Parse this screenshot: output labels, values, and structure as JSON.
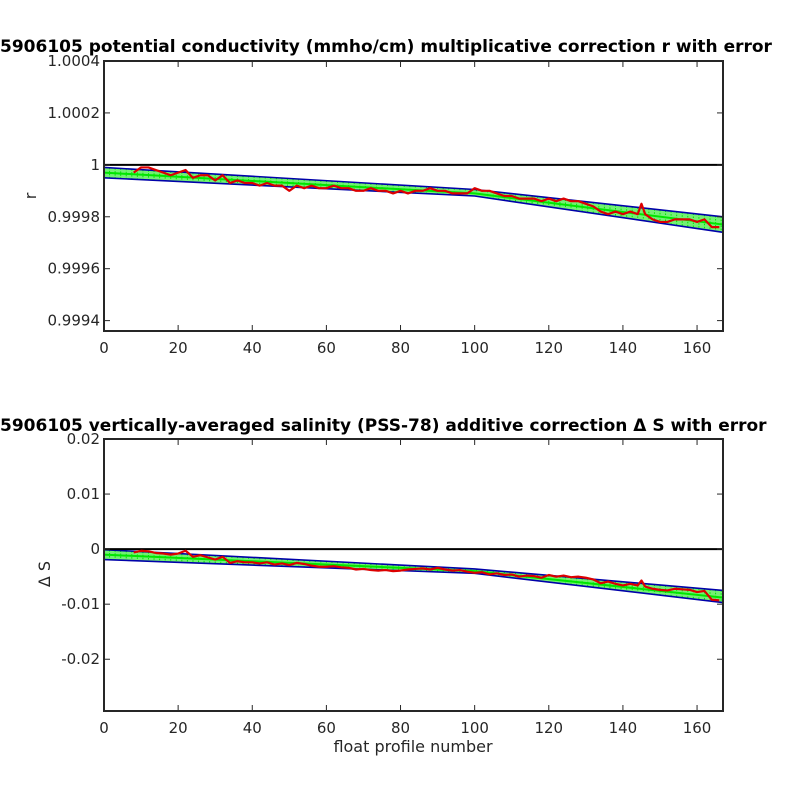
{
  "chart_data": [
    {
      "type": "line",
      "title": "5906105 potential conductivity (mmho/cm) multiplicative correction r with error",
      "xlabel": "",
      "ylabel": "r",
      "xlim": [
        0,
        167
      ],
      "ylim": [
        0.99936,
        1.0004
      ],
      "x_ticks": [
        "0",
        "20",
        "40",
        "60",
        "80",
        "100",
        "120",
        "140",
        "160"
      ],
      "y_ticks": [
        "0.9994",
        "0.9996",
        "0.9998",
        "1",
        "1.0002",
        "1.0004"
      ],
      "reference_line": 1,
      "grid": false,
      "colors": {
        "reference": "#000000",
        "fit": "#00e600",
        "error_bounds": "#0000aa",
        "data": "#dd0000"
      },
      "series": [
        {
          "role": "upper-error-bound",
          "x": [
            0,
            100,
            167
          ],
          "y": [
            0.99999,
            0.999905,
            0.9998
          ]
        },
        {
          "role": "lower-error-bound",
          "x": [
            0,
            100,
            167
          ],
          "y": [
            0.99995,
            0.99988,
            0.99974
          ]
        },
        {
          "role": "fit",
          "x": [
            0,
            100,
            167
          ],
          "y": [
            0.99997,
            0.99989,
            0.99977
          ]
        },
        {
          "role": "data",
          "x": [
            8,
            10,
            12,
            14,
            16,
            18,
            20,
            22,
            24,
            26,
            28,
            30,
            32,
            34,
            36,
            38,
            40,
            42,
            44,
            46,
            48,
            50,
            52,
            54,
            56,
            58,
            60,
            62,
            64,
            66,
            68,
            70,
            72,
            74,
            76,
            78,
            80,
            82,
            84,
            86,
            88,
            90,
            92,
            94,
            96,
            98,
            100,
            102,
            104,
            106,
            108,
            110,
            112,
            114,
            116,
            118,
            120,
            122,
            124,
            126,
            128,
            130,
            132,
            134,
            136,
            138,
            140,
            142,
            144,
            145,
            146,
            148,
            150,
            152,
            154,
            156,
            158,
            160,
            162,
            164,
            166
          ],
          "y": [
            0.99997,
            0.99999,
            0.99999,
            0.99998,
            0.99997,
            0.99996,
            0.99997,
            0.99998,
            0.99995,
            0.99996,
            0.99996,
            0.99994,
            0.99996,
            0.99993,
            0.99994,
            0.99993,
            0.99993,
            0.99992,
            0.99993,
            0.99992,
            0.99992,
            0.9999,
            0.99992,
            0.99991,
            0.99992,
            0.99991,
            0.99991,
            0.99992,
            0.99991,
            0.99991,
            0.9999,
            0.9999,
            0.99991,
            0.9999,
            0.9999,
            0.99989,
            0.9999,
            0.99989,
            0.9999,
            0.9999,
            0.99991,
            0.9999,
            0.9999,
            0.99989,
            0.99989,
            0.99989,
            0.99991,
            0.9999,
            0.9999,
            0.99989,
            0.99988,
            0.99988,
            0.99987,
            0.99987,
            0.99987,
            0.99986,
            0.99987,
            0.99986,
            0.99987,
            0.99986,
            0.99986,
            0.99985,
            0.99984,
            0.99982,
            0.99981,
            0.99982,
            0.99981,
            0.99982,
            0.99981,
            0.99985,
            0.99981,
            0.99979,
            0.99978,
            0.99978,
            0.99979,
            0.99979,
            0.99979,
            0.99978,
            0.99979,
            0.99976,
            0.99976
          ]
        }
      ]
    },
    {
      "type": "line",
      "title": "5906105 vertically-averaged salinity (PSS-78) additive correction Δ S with error",
      "xlabel": "float profile number",
      "ylabel": "Δ S",
      "xlim": [
        0,
        167
      ],
      "ylim": [
        -0.0294,
        0.02
      ],
      "x_ticks": [
        "0",
        "20",
        "40",
        "60",
        "80",
        "100",
        "120",
        "140",
        "160"
      ],
      "y_ticks": [
        "-0.02",
        "-0.01",
        "0",
        "0.01",
        "0.02"
      ],
      "reference_line": 0,
      "grid": false,
      "colors": {
        "reference": "#000000",
        "fit": "#00e600",
        "error_bounds": "#0000aa",
        "data": "#dd0000"
      },
      "series": [
        {
          "role": "upper-error-bound",
          "x": [
            0,
            100,
            167
          ],
          "y": [
            -0.0001,
            -0.0036,
            -0.0075
          ]
        },
        {
          "role": "lower-error-bound",
          "x": [
            0,
            100,
            167
          ],
          "y": [
            -0.0019,
            -0.0044,
            -0.0097
          ]
        },
        {
          "role": "fit",
          "x": [
            0,
            100,
            167
          ],
          "y": [
            -0.001,
            -0.004,
            -0.0088
          ]
        },
        {
          "role": "data",
          "x": [
            8,
            10,
            12,
            14,
            16,
            18,
            20,
            22,
            24,
            26,
            28,
            30,
            32,
            34,
            36,
            38,
            40,
            42,
            44,
            46,
            48,
            50,
            52,
            54,
            56,
            58,
            60,
            62,
            64,
            66,
            68,
            70,
            72,
            74,
            76,
            78,
            80,
            82,
            84,
            86,
            88,
            90,
            92,
            94,
            96,
            98,
            100,
            102,
            104,
            106,
            108,
            110,
            112,
            114,
            116,
            118,
            120,
            122,
            124,
            126,
            128,
            130,
            132,
            134,
            136,
            138,
            140,
            142,
            144,
            145,
            146,
            148,
            150,
            152,
            154,
            156,
            158,
            160,
            162,
            164,
            166
          ],
          "y": [
            -0.0006,
            -0.0003,
            -0.0004,
            -0.0007,
            -0.0008,
            -0.001,
            -0.0008,
            -0.0003,
            -0.0014,
            -0.0011,
            -0.0015,
            -0.0019,
            -0.0014,
            -0.0025,
            -0.0022,
            -0.0024,
            -0.0024,
            -0.0026,
            -0.0024,
            -0.0028,
            -0.0026,
            -0.0029,
            -0.0025,
            -0.0027,
            -0.003,
            -0.0032,
            -0.0032,
            -0.0031,
            -0.0033,
            -0.0034,
            -0.0037,
            -0.0036,
            -0.0038,
            -0.0039,
            -0.0038,
            -0.004,
            -0.0039,
            -0.0037,
            -0.0036,
            -0.0035,
            -0.0037,
            -0.0034,
            -0.0037,
            -0.0039,
            -0.0038,
            -0.0041,
            -0.0043,
            -0.0042,
            -0.0046,
            -0.0044,
            -0.0047,
            -0.0046,
            -0.005,
            -0.0048,
            -0.0049,
            -0.0052,
            -0.0047,
            -0.005,
            -0.0048,
            -0.0051,
            -0.005,
            -0.0052,
            -0.0055,
            -0.0062,
            -0.0059,
            -0.0063,
            -0.0066,
            -0.0063,
            -0.0066,
            -0.0057,
            -0.0068,
            -0.0072,
            -0.0074,
            -0.0075,
            -0.0072,
            -0.0073,
            -0.0074,
            -0.0078,
            -0.0076,
            -0.0092,
            -0.0093
          ]
        }
      ]
    }
  ]
}
